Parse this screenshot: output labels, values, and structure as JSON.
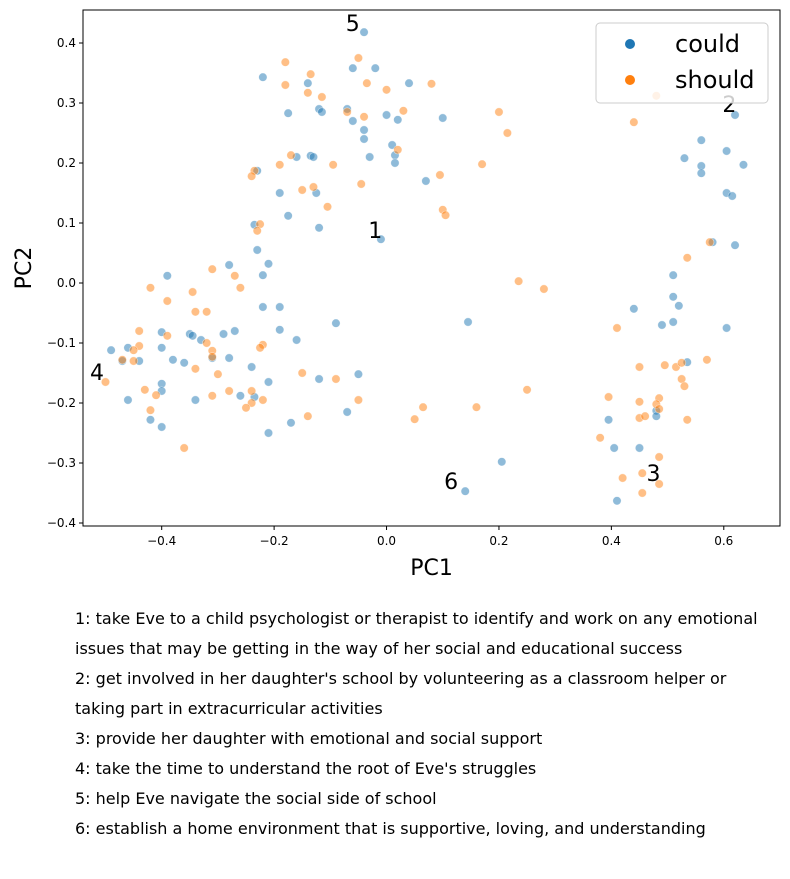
{
  "chart_data": {
    "type": "scatter",
    "xlabel": "PC1",
    "ylabel": "PC2",
    "xlim": [
      -0.54,
      0.7
    ],
    "ylim": [
      -0.405,
      0.455
    ],
    "xticks": [
      "−0.4",
      "−0.2",
      "0.0",
      "0.2",
      "0.4",
      "0.6"
    ],
    "xtick_values": [
      -0.4,
      -0.2,
      0.0,
      0.2,
      0.4,
      0.6
    ],
    "yticks": [
      "−0.4",
      "−0.3",
      "−0.2",
      "−0.1",
      "0.0",
      "0.1",
      "0.2",
      "0.3",
      "0.4"
    ],
    "ytick_values": [
      -0.4,
      -0.3,
      -0.2,
      -0.1,
      0.0,
      0.1,
      0.2,
      0.3,
      0.4
    ],
    "grid": false,
    "legend_position": "top-right",
    "series": [
      {
        "name": "could",
        "color": "#1f77b4",
        "points": [
          [
            -0.04,
            0.418
          ],
          [
            -0.06,
            0.358
          ],
          [
            -0.02,
            0.358
          ],
          [
            -0.22,
            0.343
          ],
          [
            0.04,
            0.333
          ],
          [
            -0.14,
            0.333
          ],
          [
            -0.07,
            0.29
          ],
          [
            -0.12,
            0.29
          ],
          [
            -0.115,
            0.285
          ],
          [
            -0.175,
            0.283
          ],
          [
            0.0,
            0.28
          ],
          [
            0.02,
            0.272
          ],
          [
            -0.06,
            0.27
          ],
          [
            0.1,
            0.275
          ],
          [
            -0.04,
            0.255
          ],
          [
            -0.04,
            0.24
          ],
          [
            0.01,
            0.23
          ],
          [
            -0.16,
            0.21
          ],
          [
            -0.135,
            0.212
          ],
          [
            -0.13,
            0.21
          ],
          [
            -0.03,
            0.21
          ],
          [
            0.015,
            0.213
          ],
          [
            0.015,
            0.2
          ],
          [
            -0.23,
            0.187
          ],
          [
            0.07,
            0.17
          ],
          [
            -0.19,
            0.15
          ],
          [
            -0.125,
            0.15
          ],
          [
            -0.175,
            0.112
          ],
          [
            -0.12,
            0.092
          ],
          [
            -0.235,
            0.097
          ],
          [
            -0.23,
            0.055
          ],
          [
            -0.21,
            0.032
          ],
          [
            -0.22,
            0.013
          ],
          [
            -0.39,
            0.012
          ],
          [
            -0.28,
            0.03
          ],
          [
            -0.19,
            -0.04
          ],
          [
            -0.22,
            -0.04
          ],
          [
            -0.09,
            -0.067
          ],
          [
            -0.27,
            -0.08
          ],
          [
            -0.19,
            -0.078
          ],
          [
            -0.35,
            -0.085
          ],
          [
            -0.345,
            -0.088
          ],
          [
            -0.29,
            -0.085
          ],
          [
            -0.4,
            -0.082
          ],
          [
            -0.16,
            -0.095
          ],
          [
            -0.33,
            -0.095
          ],
          [
            -0.31,
            -0.125
          ],
          [
            -0.4,
            -0.108
          ],
          [
            -0.28,
            -0.125
          ],
          [
            -0.46,
            -0.108
          ],
          [
            -0.38,
            -0.128
          ],
          [
            -0.24,
            -0.14
          ],
          [
            -0.36,
            -0.133
          ],
          [
            -0.49,
            -0.112
          ],
          [
            -0.47,
            -0.13
          ],
          [
            -0.44,
            -0.13
          ],
          [
            -0.12,
            -0.16
          ],
          [
            -0.05,
            -0.152
          ],
          [
            -0.4,
            -0.168
          ],
          [
            -0.4,
            -0.18
          ],
          [
            -0.21,
            -0.165
          ],
          [
            -0.34,
            -0.195
          ],
          [
            -0.26,
            -0.188
          ],
          [
            -0.235,
            -0.19
          ],
          [
            -0.46,
            -0.195
          ],
          [
            -0.07,
            -0.215
          ],
          [
            -0.42,
            -0.228
          ],
          [
            -0.4,
            -0.24
          ],
          [
            -0.17,
            -0.233
          ],
          [
            -0.21,
            -0.25
          ],
          [
            0.145,
            -0.065
          ],
          [
            0.205,
            -0.298
          ],
          [
            0.14,
            -0.347
          ],
          [
            -0.01,
            0.073
          ],
          [
            0.56,
            0.238
          ],
          [
            0.62,
            0.28
          ],
          [
            0.605,
            0.22
          ],
          [
            0.635,
            0.197
          ],
          [
            0.53,
            0.208
          ],
          [
            0.56,
            0.195
          ],
          [
            0.56,
            0.183
          ],
          [
            0.605,
            0.15
          ],
          [
            0.615,
            0.145
          ],
          [
            0.58,
            0.068
          ],
          [
            0.62,
            0.063
          ],
          [
            0.51,
            0.013
          ],
          [
            0.51,
            -0.023
          ],
          [
            0.52,
            -0.038
          ],
          [
            0.44,
            -0.043
          ],
          [
            0.49,
            -0.07
          ],
          [
            0.51,
            -0.065
          ],
          [
            0.535,
            -0.132
          ],
          [
            0.605,
            -0.075
          ],
          [
            0.48,
            -0.213
          ],
          [
            0.48,
            -0.222
          ],
          [
            0.395,
            -0.228
          ],
          [
            0.405,
            -0.275
          ],
          [
            0.45,
            -0.275
          ],
          [
            0.41,
            -0.363
          ]
        ]
      },
      {
        "name": "should",
        "color": "#ff7f0e",
        "points": [
          [
            -0.05,
            0.375
          ],
          [
            -0.18,
            0.368
          ],
          [
            -0.135,
            0.348
          ],
          [
            -0.035,
            0.333
          ],
          [
            0.08,
            0.332
          ],
          [
            -0.18,
            0.33
          ],
          [
            0.0,
            0.322
          ],
          [
            -0.14,
            0.317
          ],
          [
            -0.115,
            0.31
          ],
          [
            0.48,
            0.312
          ],
          [
            0.2,
            0.285
          ],
          [
            0.03,
            0.287
          ],
          [
            -0.07,
            0.285
          ],
          [
            -0.04,
            0.277
          ],
          [
            0.44,
            0.268
          ],
          [
            0.215,
            0.25
          ],
          [
            -0.17,
            0.213
          ],
          [
            -0.19,
            0.197
          ],
          [
            -0.095,
            0.197
          ],
          [
            0.02,
            0.222
          ],
          [
            0.17,
            0.198
          ],
          [
            -0.235,
            0.187
          ],
          [
            -0.24,
            0.178
          ],
          [
            0.095,
            0.18
          ],
          [
            -0.13,
            0.16
          ],
          [
            -0.15,
            0.155
          ],
          [
            -0.045,
            0.165
          ],
          [
            -0.105,
            0.127
          ],
          [
            0.1,
            0.122
          ],
          [
            -0.225,
            0.098
          ],
          [
            0.105,
            0.113
          ],
          [
            -0.23,
            0.087
          ],
          [
            0.535,
            0.042
          ],
          [
            0.575,
            0.068
          ],
          [
            -0.31,
            0.023
          ],
          [
            -0.27,
            0.012
          ],
          [
            0.235,
            0.003
          ],
          [
            -0.26,
            -0.008
          ],
          [
            0.28,
            -0.01
          ],
          [
            -0.42,
            -0.008
          ],
          [
            -0.345,
            -0.015
          ],
          [
            -0.39,
            -0.03
          ],
          [
            -0.34,
            -0.048
          ],
          [
            -0.32,
            -0.048
          ],
          [
            -0.44,
            -0.08
          ],
          [
            -0.39,
            -0.088
          ],
          [
            0.41,
            -0.075
          ],
          [
            -0.32,
            -0.1
          ],
          [
            -0.22,
            -0.103
          ],
          [
            -0.225,
            -0.108
          ],
          [
            -0.31,
            -0.113
          ],
          [
            -0.44,
            -0.105
          ],
          [
            -0.45,
            -0.112
          ],
          [
            -0.31,
            -0.123
          ],
          [
            -0.47,
            -0.128
          ],
          [
            -0.45,
            -0.13
          ],
          [
            -0.34,
            -0.143
          ],
          [
            0.45,
            -0.14
          ],
          [
            0.495,
            -0.137
          ],
          [
            0.515,
            -0.14
          ],
          [
            0.525,
            -0.133
          ],
          [
            0.57,
            -0.128
          ],
          [
            -0.3,
            -0.152
          ],
          [
            -0.15,
            -0.15
          ],
          [
            -0.09,
            -0.16
          ],
          [
            -0.43,
            -0.178
          ],
          [
            -0.28,
            -0.18
          ],
          [
            -0.41,
            -0.187
          ],
          [
            -0.31,
            -0.188
          ],
          [
            -0.24,
            -0.18
          ],
          [
            0.525,
            -0.16
          ],
          [
            0.53,
            -0.172
          ],
          [
            0.25,
            -0.178
          ],
          [
            -0.05,
            -0.195
          ],
          [
            -0.24,
            -0.2
          ],
          [
            -0.22,
            -0.195
          ],
          [
            -0.42,
            -0.212
          ],
          [
            -0.25,
            -0.208
          ],
          [
            -0.14,
            -0.222
          ],
          [
            0.065,
            -0.207
          ],
          [
            0.16,
            -0.207
          ],
          [
            0.395,
            -0.19
          ],
          [
            0.45,
            -0.198
          ],
          [
            0.485,
            -0.192
          ],
          [
            0.48,
            -0.202
          ],
          [
            0.485,
            -0.21
          ],
          [
            0.45,
            -0.225
          ],
          [
            0.46,
            -0.222
          ],
          [
            0.05,
            -0.227
          ],
          [
            0.535,
            -0.228
          ],
          [
            -0.36,
            -0.275
          ],
          [
            0.38,
            -0.258
          ],
          [
            0.485,
            -0.29
          ],
          [
            0.455,
            -0.317
          ],
          [
            0.42,
            -0.325
          ],
          [
            0.485,
            -0.335
          ],
          [
            0.455,
            -0.35
          ],
          [
            -0.5,
            -0.165
          ]
        ]
      }
    ],
    "annotations": [
      {
        "label": "1",
        "x": -0.02,
        "y": 0.085
      },
      {
        "label": "2",
        "x": 0.61,
        "y": 0.295
      },
      {
        "label": "3",
        "x": 0.475,
        "y": -0.32
      },
      {
        "label": "4",
        "x": -0.515,
        "y": -0.152
      },
      {
        "label": "5",
        "x": -0.06,
        "y": 0.43
      },
      {
        "label": "6",
        "x": 0.115,
        "y": -0.333
      }
    ]
  },
  "notes": [
    "1: take Eve to a child psychologist or therapist to identify and work on any emotional issues that may be getting in the way of her social and educational success",
    "2: get involved in her daughter's school by volunteering as a classroom helper or taking part in extracurricular activities",
    "3: provide her daughter with emotional and social support",
    "4: take the time to understand the root of Eve's struggles",
    "5: help Eve navigate the social side of school",
    "6: establish a home environment that is supportive, loving, and understanding"
  ]
}
